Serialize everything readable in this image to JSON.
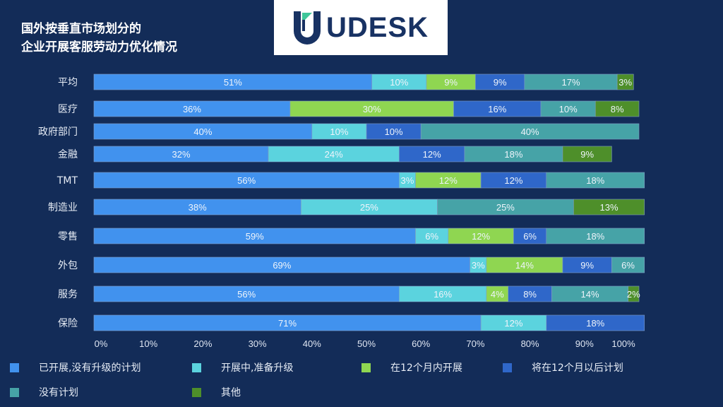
{
  "title_lines": [
    "国外按垂直市场划分的",
    "企业开展客服劳动力优化情况"
  ],
  "logo": {
    "text": "UDESK",
    "icon": "udesk-logo-icon"
  },
  "colors": {
    "background": "#132c58",
    "series": [
      "#4192ee",
      "#5bd3de",
      "#8fd651",
      "#2f67c9",
      "#46a3a7",
      "#4e8f2a"
    ]
  },
  "chart_data": {
    "type": "bar",
    "orientation": "horizontal",
    "stacked": true,
    "title": "国外按垂直市场划分的 企业开展客服劳动力优化情况",
    "xlabel": "",
    "ylabel": "",
    "xlim": [
      0,
      100
    ],
    "x_ticks": [
      "0%",
      "10%",
      "20%",
      "30%",
      "40%",
      "50%",
      "60%",
      "70%",
      "80%",
      "90%",
      "100%"
    ],
    "grid": false,
    "legend_position": "bottom",
    "categories": [
      "平均",
      "医疗",
      "政府部门",
      "金融",
      "TMT",
      "制造业",
      "零售",
      "外包",
      "服务",
      "保险"
    ],
    "series": [
      {
        "name": "已开展,没有升级的计划",
        "values": [
          51,
          36,
          40,
          32,
          56,
          38,
          59,
          69,
          56,
          71
        ]
      },
      {
        "name": "开展中,准备升级",
        "values": [
          10,
          0,
          10,
          24,
          3,
          25,
          6,
          3,
          16,
          12
        ]
      },
      {
        "name": "在12个月内开展",
        "values": [
          9,
          30,
          0,
          0,
          12,
          0,
          12,
          14,
          4,
          0
        ]
      },
      {
        "name": "将在12个月以后计划",
        "values": [
          9,
          16,
          10,
          12,
          12,
          0,
          6,
          9,
          8,
          18
        ]
      },
      {
        "name": "没有计划",
        "values": [
          17,
          10,
          40,
          18,
          18,
          25,
          18,
          6,
          14,
          0
        ]
      },
      {
        "name": "其他",
        "values": [
          3,
          8,
          0,
          9,
          0,
          13,
          0,
          0,
          2,
          0
        ]
      }
    ],
    "value_label_suffix": "%"
  }
}
